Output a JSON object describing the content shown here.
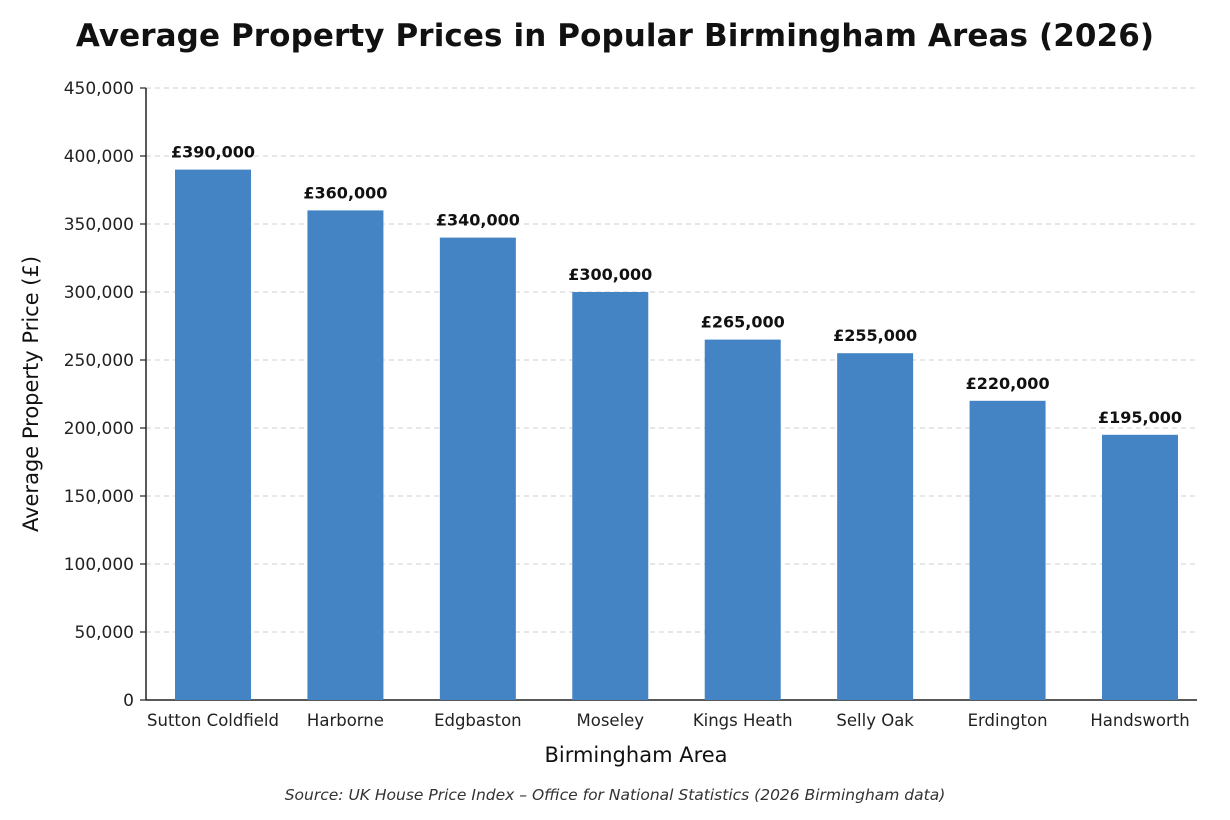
{
  "chart_data": {
    "type": "bar",
    "title": "Average Property Prices in Popular Birmingham Areas (2026)",
    "xlabel": "Birmingham Area",
    "ylabel": "Average Property Price (£)",
    "categories": [
      "Sutton Coldfield",
      "Harborne",
      "Edgbaston",
      "Moseley",
      "Kings Heath",
      "Selly Oak",
      "Erdington",
      "Handsworth"
    ],
    "values": [
      390000,
      360000,
      340000,
      300000,
      265000,
      255000,
      220000,
      195000
    ],
    "data_labels": [
      "£390,000",
      "£360,000",
      "£340,000",
      "£300,000",
      "£265,000",
      "£255,000",
      "£220,000",
      "£195,000"
    ],
    "ylim": [
      0,
      450000
    ],
    "yticks": [
      0,
      50000,
      100000,
      150000,
      200000,
      250000,
      300000,
      350000,
      400000,
      450000
    ],
    "ytick_labels": [
      "0",
      "50,000",
      "100,000",
      "150,000",
      "200,000",
      "250,000",
      "300,000",
      "350,000",
      "400,000",
      "450,000"
    ],
    "grid": true,
    "bar_color": "#4484c4",
    "source": "Source: UK House Price Index – Office for National Statistics (2026 Birmingham data)"
  }
}
